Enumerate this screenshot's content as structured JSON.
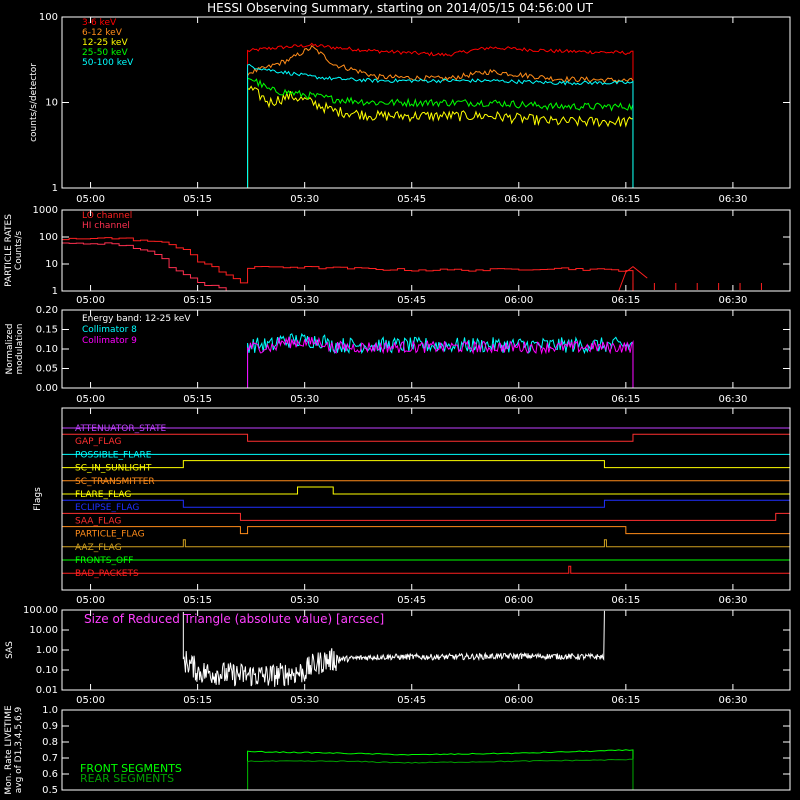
{
  "title": "HESSI Observing Summary, starting on 2014/05/15 04:56:00 UT",
  "time_ticks": [
    "05:00",
    "05:15",
    "05:30",
    "05:45",
    "06:00",
    "06:15",
    "06:30"
  ],
  "chart_data": [
    {
      "type": "line",
      "panel": "count rates",
      "ylabel": "counts/s/detector",
      "yscale": "log",
      "ylim": [
        1,
        100
      ],
      "yticks": [
        "1",
        "10",
        "100"
      ],
      "x_start": "04:56",
      "x_end": "06:38",
      "data_start": "05:22",
      "data_end": "06:16",
      "x": [
        "05:22",
        "05:25",
        "05:28",
        "05:31",
        "05:34",
        "05:40",
        "05:50",
        "05:56",
        "06:05",
        "06:16"
      ],
      "legend_position": "top-left",
      "series": [
        {
          "name": "3-6 keV",
          "color": "#ff0000",
          "values": [
            40,
            43,
            45,
            47,
            44,
            40,
            36,
            44,
            40,
            38
          ]
        },
        {
          "name": "6-12 keV",
          "color": "#ff8c1a",
          "values": [
            22,
            26,
            32,
            44,
            28,
            20,
            19,
            23,
            19,
            18
          ]
        },
        {
          "name": "12-25 keV",
          "color": "#ffff00",
          "values": [
            15,
            10,
            12,
            10,
            8,
            7,
            7,
            7,
            6,
            6
          ]
        },
        {
          "name": "25-50 keV",
          "color": "#00ff00",
          "values": [
            20,
            14,
            13,
            12,
            11,
            10,
            10,
            10,
            9,
            9
          ]
        },
        {
          "name": "50-100 keV",
          "color": "#00ffff",
          "values": [
            27,
            24,
            22,
            20,
            19,
            18,
            18,
            18,
            17,
            17
          ]
        }
      ]
    },
    {
      "type": "line",
      "panel": "particle rates",
      "ylabel": [
        "PARTICLE RATES",
        "Counts/s"
      ],
      "yscale": "log",
      "ylim": [
        1,
        1000
      ],
      "yticks": [
        "1",
        "10",
        "100",
        "1000"
      ],
      "series": [
        {
          "name": "LO channel",
          "color": "#ff2020"
        },
        {
          "name": "HI channel",
          "color": "#ff3050"
        }
      ],
      "lo_channel": {
        "x": [
          "04:56",
          "05:00",
          "05:05",
          "05:10",
          "05:13",
          "05:15",
          "05:18",
          "05:20",
          "05:21",
          "05:22",
          "05:25",
          "05:35",
          "05:45",
          "05:55",
          "06:05",
          "06:12",
          "06:15",
          "06:16"
        ],
        "values": [
          80,
          95,
          85,
          60,
          35,
          12,
          5,
          3,
          2,
          7,
          8,
          7,
          6,
          6,
          7,
          6,
          6,
          1
        ]
      },
      "hi_channel": {
        "x": [
          "04:56",
          "05:02",
          "05:08",
          "05:11",
          "05:13",
          "05:15",
          "05:17",
          "05:19"
        ],
        "values": [
          55,
          60,
          30,
          8,
          4,
          2,
          1.5,
          1
        ]
      }
    },
    {
      "type": "line",
      "panel": "modulation",
      "ylabel": [
        "Normalized",
        "modulation"
      ],
      "ylim": [
        0,
        0.2
      ],
      "yticks": [
        "0.00",
        "0.05",
        "0.10",
        "0.15",
        "0.20"
      ],
      "energy_band": "Energy band: 12-25 keV",
      "series": [
        {
          "name": "Collimator 8",
          "color": "#00ffff",
          "mean": 0.11
        },
        {
          "name": "Collimator 9",
          "color": "#ff00ff",
          "mean": 0.105
        }
      ],
      "data_start": "05:22",
      "data_end": "06:16"
    },
    {
      "type": "line",
      "panel": "flags",
      "ylabel": "Flags",
      "flags": [
        {
          "name": "ATTENUATOR_STATE",
          "color": "#c040ff",
          "on_intervals": []
        },
        {
          "name": "GAP_FLAG",
          "color": "#ff3030",
          "on_intervals": [
            [
              "04:56",
              "05:22"
            ],
            [
              "06:16",
              "06:38"
            ]
          ]
        },
        {
          "name": "POSSIBLE_FLARE",
          "color": "#00ffff",
          "on_intervals": []
        },
        {
          "name": "SC_IN_SUNLIGHT",
          "color": "#ffff00",
          "on_intervals": [
            [
              "05:13",
              "06:12"
            ]
          ]
        },
        {
          "name": "SC_TRANSMITTER",
          "color": "#ff8c1a",
          "on_intervals": []
        },
        {
          "name": "FLARE_FLAG",
          "color": "#ffff00",
          "on_intervals": [
            [
              "05:29",
              "05:34"
            ]
          ]
        },
        {
          "name": "ECLIPSE_FLAG",
          "color": "#2030ff",
          "on_intervals": [
            [
              "04:56",
              "05:13"
            ],
            [
              "06:12",
              "06:38"
            ]
          ]
        },
        {
          "name": "SAA_FLAG",
          "color": "#ff3030",
          "on_intervals": [
            [
              "04:56",
              "05:21"
            ],
            [
              "06:36",
              "06:38"
            ]
          ]
        },
        {
          "name": "PARTICLE_FLAG",
          "color": "#ff8c1a",
          "on_intervals": [
            [
              "04:56",
              "05:21"
            ],
            [
              "05:22",
              "06:15"
            ]
          ]
        },
        {
          "name": "AAZ_FLAG",
          "color": "#d0a020",
          "on_intervals": [
            [
              "05:13",
              "05:13"
            ],
            [
              "06:12",
              "06:12"
            ]
          ]
        },
        {
          "name": "FRONTS_OFF",
          "color": "#00ff00",
          "on_intervals": []
        },
        {
          "name": "BAD_PACKETS",
          "color": "#ff2020",
          "on_intervals": [
            [
              "06:07",
              "06:07"
            ]
          ]
        }
      ]
    },
    {
      "type": "line",
      "panel": "SAS",
      "ylabel": "SAS",
      "yscale": "log",
      "ylim": [
        0.01,
        100
      ],
      "yticks": [
        "0.01",
        "0.10",
        "1.00",
        "10.00",
        "100.00"
      ],
      "annotation": "Size of Reduced Triangle (absolute value) [arcsec]",
      "series": [
        {
          "name": "Reduced triangle",
          "color": "#ffffff",
          "x": [
            "05:13",
            "05:15",
            "05:20",
            "05:25",
            "05:30",
            "05:33",
            "05:40",
            "05:50",
            "06:00",
            "06:12"
          ],
          "values": [
            0.3,
            0.08,
            0.06,
            0.05,
            0.08,
            0.3,
            0.45,
            0.45,
            0.5,
            0.45
          ]
        }
      ]
    },
    {
      "type": "line",
      "panel": "livetime",
      "ylabel": [
        "Mon. Rate LIVETIME",
        "avg of D1,3,4,5,6,9"
      ],
      "ylim": [
        0.5,
        1.0
      ],
      "yticks": [
        "0.5",
        "0.6",
        "0.7",
        "0.8",
        "0.9",
        "1.0"
      ],
      "series": [
        {
          "name": "FRONT SEGMENTS",
          "color": "#00ff00",
          "x": [
            "05:22",
            "05:35",
            "05:45",
            "06:00",
            "06:16"
          ],
          "values": [
            0.74,
            0.73,
            0.72,
            0.73,
            0.75
          ]
        },
        {
          "name": "REAR SEGMENTS",
          "color": "#00a000",
          "x": [
            "05:22",
            "05:35",
            "05:45",
            "06:00",
            "06:16"
          ],
          "values": [
            0.68,
            0.68,
            0.67,
            0.68,
            0.69
          ]
        }
      ]
    }
  ]
}
